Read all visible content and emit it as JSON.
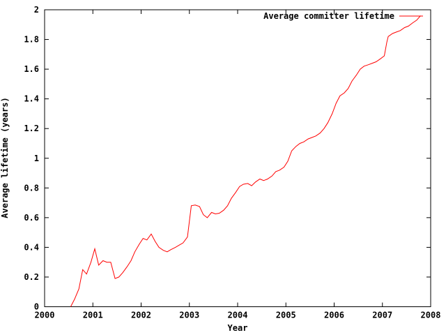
{
  "figure": {
    "background": "#ffffff",
    "border_color": "#000000",
    "text_color": "#000000"
  },
  "chart_data": {
    "type": "line",
    "title": "",
    "xlabel": "Year",
    "ylabel": "Average lifetime (years)",
    "xlim": [
      2000,
      2008
    ],
    "ylim": [
      0,
      2
    ],
    "grid": false,
    "x_ticks": {
      "values": [
        2000,
        2001,
        2002,
        2003,
        2004,
        2005,
        2006,
        2007,
        2008
      ],
      "labels": [
        "2000",
        "2001",
        "2002",
        "2003",
        "2004",
        "2005",
        "2006",
        "2007",
        "2008"
      ]
    },
    "y_ticks": {
      "values": [
        0,
        0.2,
        0.4,
        0.6,
        0.8,
        1,
        1.2,
        1.4,
        1.6,
        1.8,
        2
      ],
      "labels": [
        "0",
        "0.2",
        "0.4",
        "0.6",
        "0.8",
        "1",
        "1.2",
        "1.4",
        "1.6",
        "1.8",
        "2"
      ]
    },
    "legend": {
      "position": "top-right-inside",
      "entries": [
        {
          "label": "Average committer lifetime",
          "color": "#ff0000"
        }
      ]
    },
    "series": [
      {
        "name": "Average committer lifetime",
        "color": "#ff0000",
        "points": [
          [
            2000.54,
            0.0
          ],
          [
            2000.62,
            0.05
          ],
          [
            2000.71,
            0.12
          ],
          [
            2000.79,
            0.25
          ],
          [
            2000.87,
            0.22
          ],
          [
            2000.96,
            0.3
          ],
          [
            2001.04,
            0.39
          ],
          [
            2001.12,
            0.28
          ],
          [
            2001.21,
            0.31
          ],
          [
            2001.29,
            0.3
          ],
          [
            2001.37,
            0.3
          ],
          [
            2001.46,
            0.19
          ],
          [
            2001.54,
            0.2
          ],
          [
            2001.62,
            0.23
          ],
          [
            2001.71,
            0.27
          ],
          [
            2001.79,
            0.31
          ],
          [
            2001.87,
            0.37
          ],
          [
            2001.96,
            0.42
          ],
          [
            2002.04,
            0.46
          ],
          [
            2002.12,
            0.45
          ],
          [
            2002.21,
            0.49
          ],
          [
            2002.29,
            0.44
          ],
          [
            2002.37,
            0.4
          ],
          [
            2002.46,
            0.38
          ],
          [
            2002.54,
            0.37
          ],
          [
            2002.62,
            0.385
          ],
          [
            2002.71,
            0.4
          ],
          [
            2002.79,
            0.415
          ],
          [
            2002.87,
            0.43
          ],
          [
            2002.96,
            0.47
          ],
          [
            2003.04,
            0.68
          ],
          [
            2003.12,
            0.685
          ],
          [
            2003.21,
            0.675
          ],
          [
            2003.29,
            0.62
          ],
          [
            2003.37,
            0.6
          ],
          [
            2003.46,
            0.635
          ],
          [
            2003.54,
            0.625
          ],
          [
            2003.62,
            0.63
          ],
          [
            2003.71,
            0.65
          ],
          [
            2003.79,
            0.68
          ],
          [
            2003.87,
            0.73
          ],
          [
            2003.96,
            0.77
          ],
          [
            2004.04,
            0.81
          ],
          [
            2004.12,
            0.825
          ],
          [
            2004.21,
            0.83
          ],
          [
            2004.29,
            0.815
          ],
          [
            2004.37,
            0.84
          ],
          [
            2004.46,
            0.86
          ],
          [
            2004.54,
            0.85
          ],
          [
            2004.62,
            0.86
          ],
          [
            2004.71,
            0.88
          ],
          [
            2004.79,
            0.91
          ],
          [
            2004.87,
            0.92
          ],
          [
            2004.96,
            0.94
          ],
          [
            2005.04,
            0.98
          ],
          [
            2005.12,
            1.05
          ],
          [
            2005.21,
            1.08
          ],
          [
            2005.29,
            1.1
          ],
          [
            2005.37,
            1.11
          ],
          [
            2005.46,
            1.13
          ],
          [
            2005.54,
            1.14
          ],
          [
            2005.62,
            1.15
          ],
          [
            2005.71,
            1.17
          ],
          [
            2005.79,
            1.2
          ],
          [
            2005.87,
            1.24
          ],
          [
            2005.96,
            1.3
          ],
          [
            2006.04,
            1.37
          ],
          [
            2006.12,
            1.42
          ],
          [
            2006.21,
            1.44
          ],
          [
            2006.29,
            1.47
          ],
          [
            2006.37,
            1.52
          ],
          [
            2006.46,
            1.56
          ],
          [
            2006.54,
            1.6
          ],
          [
            2006.62,
            1.62
          ],
          [
            2006.71,
            1.63
          ],
          [
            2006.79,
            1.64
          ],
          [
            2006.87,
            1.65
          ],
          [
            2006.96,
            1.67
          ],
          [
            2007.04,
            1.69
          ],
          [
            2007.09,
            1.78
          ],
          [
            2007.12,
            1.82
          ],
          [
            2007.21,
            1.84
          ],
          [
            2007.29,
            1.85
          ],
          [
            2007.37,
            1.86
          ],
          [
            2007.46,
            1.88
          ],
          [
            2007.54,
            1.89
          ],
          [
            2007.62,
            1.91
          ],
          [
            2007.71,
            1.93
          ],
          [
            2007.79,
            1.96
          ]
        ]
      }
    ]
  }
}
